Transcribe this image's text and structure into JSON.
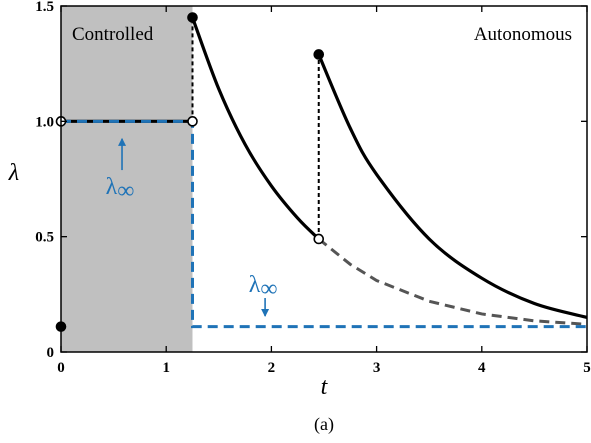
{
  "chart_data": {
    "type": "line",
    "xlabel": "t",
    "ylabel": "λ",
    "caption": "(a)",
    "xlim": [
      0,
      5
    ],
    "ylim": [
      0,
      1.5
    ],
    "xticks": [
      0,
      1,
      2,
      3,
      4,
      5
    ],
    "xtick_labels": [
      "0",
      "1",
      "2",
      "3",
      "4",
      "5"
    ],
    "yticks": [
      0,
      0.5,
      1.0,
      1.5
    ],
    "ytick_labels": [
      "0",
      "0.5",
      "1.0",
      "1.5"
    ],
    "regions": [
      {
        "label": "Controlled",
        "x_range": [
          0,
          1.25
        ],
        "color": "#c0c0c0"
      },
      {
        "label": "Autonomous",
        "x_range": [
          1.25,
          5
        ],
        "color": "#ffffff"
      }
    ],
    "series": [
      {
        "style": "solid",
        "color": "#000000",
        "x": [
          0,
          1.25
        ],
        "y": [
          1.0,
          1.0
        ]
      },
      {
        "style": "solid",
        "color": "#000000",
        "x": [
          1.25,
          1.5,
          1.75,
          2.0,
          2.25,
          2.45
        ],
        "y": [
          1.45,
          1.14,
          0.9,
          0.72,
          0.58,
          0.49
        ]
      },
      {
        "style": "solid",
        "color": "#000000",
        "x": [
          2.45,
          2.75,
          3.0,
          3.5,
          4.0,
          4.5,
          5.0
        ],
        "y": [
          1.29,
          0.97,
          0.77,
          0.49,
          0.32,
          0.21,
          0.15
        ]
      },
      {
        "style": "dashed",
        "color": "#555555",
        "x": [
          2.45,
          2.75,
          3.0,
          3.5,
          4.0,
          4.5,
          5.0
        ],
        "y": [
          0.49,
          0.38,
          0.31,
          0.22,
          0.165,
          0.135,
          0.12
        ]
      },
      {
        "style": "dashed",
        "color": "#1f73b7",
        "x": [
          0,
          1.25,
          1.25,
          5.0
        ],
        "y": [
          1.0,
          1.0,
          0.11,
          0.11
        ]
      }
    ],
    "jumps": [
      {
        "x": 1.25,
        "y_from": 1.0,
        "y_to": 1.45
      },
      {
        "x": 2.45,
        "y_from": 0.49,
        "y_to": 1.29
      }
    ],
    "points": [
      {
        "x": 0,
        "y": 0.11,
        "filled": true
      },
      {
        "x": 0,
        "y": 1.0,
        "filled": false
      },
      {
        "x": 1.25,
        "y": 1.0,
        "filled": false
      },
      {
        "x": 1.25,
        "y": 1.45,
        "filled": true
      },
      {
        "x": 2.45,
        "y": 0.49,
        "filled": false
      },
      {
        "x": 2.45,
        "y": 1.29,
        "filled": true
      }
    ],
    "annotations": [
      {
        "text": "λ",
        "subscript": "∞",
        "x": 0.58,
        "y": 0.78,
        "arrow_to": [
          0.58,
          0.95
        ]
      },
      {
        "text": "λ",
        "subscript": "∞",
        "x": 1.94,
        "y": 0.26,
        "arrow_to": [
          1.94,
          0.13
        ]
      }
    ]
  }
}
